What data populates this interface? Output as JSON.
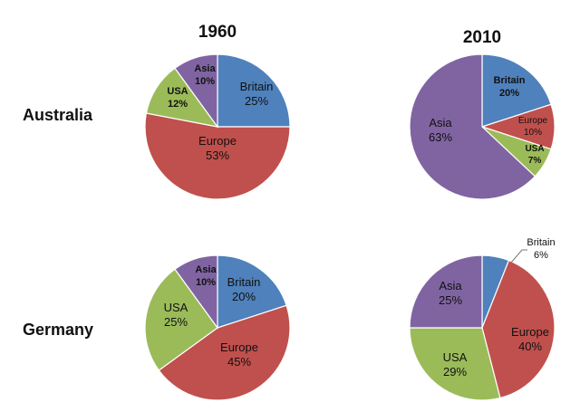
{
  "colors": {
    "Britain": "#4f81bd",
    "Europe": "#c0504d",
    "USA": "#9bbb59",
    "Asia": "#8064a2"
  },
  "headings": {
    "col_1960": "1960",
    "col_2010": "2010",
    "row_australia": "Australia",
    "row_germany": "Germany"
  },
  "chart_data": [
    {
      "type": "pie",
      "row": "Australia",
      "column": "1960",
      "slices": [
        {
          "category": "Britain",
          "value": 25,
          "label": "Britain",
          "pct": "25%"
        },
        {
          "category": "Europe",
          "value": 53,
          "label": "Europe",
          "pct": "53%"
        },
        {
          "category": "USA",
          "value": 12,
          "label": "USA",
          "pct": "12%"
        },
        {
          "category": "Asia",
          "value": 10,
          "label": "Asia",
          "pct": "10%"
        }
      ]
    },
    {
      "type": "pie",
      "row": "Australia",
      "column": "2010",
      "slices": [
        {
          "category": "Britain",
          "value": 20,
          "label": "Britain",
          "pct": "20%"
        },
        {
          "category": "Europe",
          "value": 10,
          "label": "Europe",
          "pct": "10%"
        },
        {
          "category": "USA",
          "value": 7,
          "label": "USA",
          "pct": "7%"
        },
        {
          "category": "Asia",
          "value": 63,
          "label": "Asia",
          "pct": "63%"
        }
      ]
    },
    {
      "type": "pie",
      "row": "Germany",
      "column": "1960",
      "slices": [
        {
          "category": "Britain",
          "value": 20,
          "label": "Britain",
          "pct": "20%"
        },
        {
          "category": "Europe",
          "value": 45,
          "label": "Europe",
          "pct": "45%"
        },
        {
          "category": "USA",
          "value": 25,
          "label": "USA",
          "pct": "25%"
        },
        {
          "category": "Asia",
          "value": 10,
          "label": "Asia",
          "pct": "10%"
        }
      ]
    },
    {
      "type": "pie",
      "row": "Germany",
      "column": "2010",
      "slices": [
        {
          "category": "Britain",
          "value": 6,
          "label": "Britain",
          "pct": "6%"
        },
        {
          "category": "Europe",
          "value": 40,
          "label": "Europe",
          "pct": "40%"
        },
        {
          "category": "USA",
          "value": 29,
          "label": "USA",
          "pct": "29%"
        },
        {
          "category": "Asia",
          "value": 25,
          "label": "Asia",
          "pct": "25%"
        }
      ]
    }
  ]
}
